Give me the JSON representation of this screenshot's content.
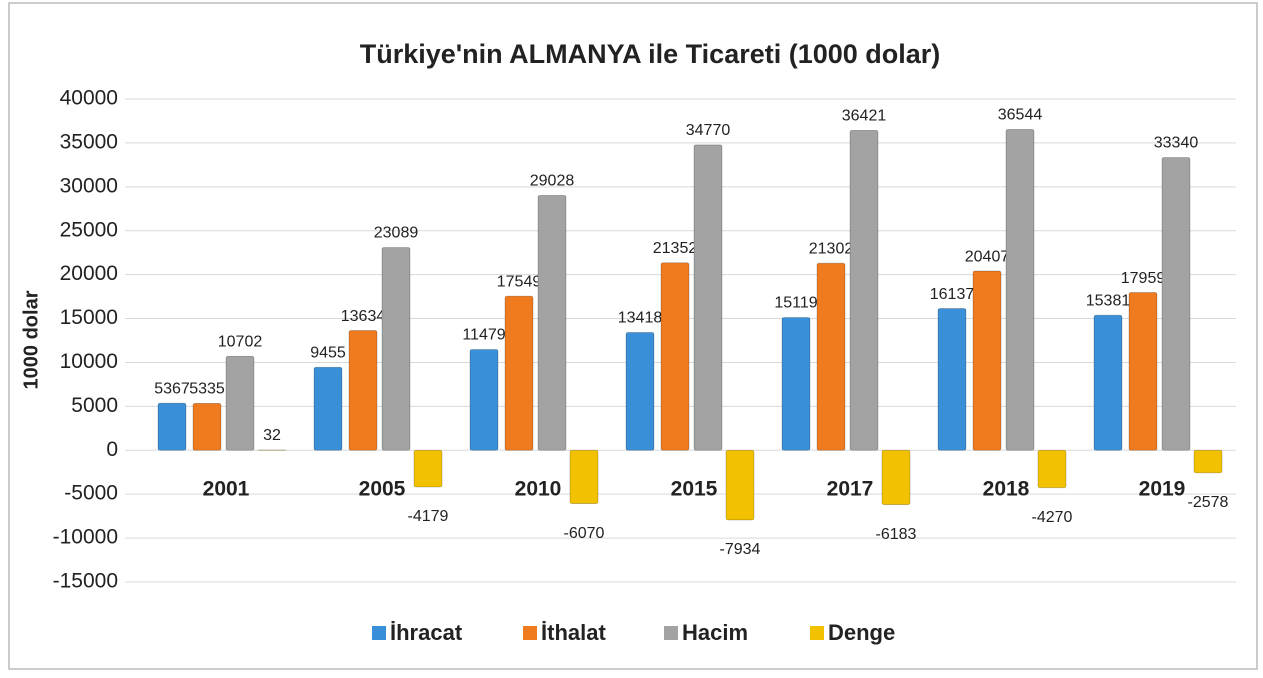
{
  "chart_data": {
    "type": "bar",
    "title": "Türkiye'nin ALMANYA ile Ticareti (1000 dolar)",
    "y_label": "1000 dolar",
    "categories": [
      "2001",
      "2005",
      "2010",
      "2015",
      "2017",
      "2018",
      "2019"
    ],
    "series": [
      {
        "name": "İhracat",
        "color": "#3a8fd9",
        "values": [
          5367,
          9455,
          11479,
          13418,
          15119,
          16137,
          15381
        ]
      },
      {
        "name": "İthalat",
        "color": "#f07a1e",
        "values": [
          5335,
          13634,
          17549,
          21352,
          21302,
          20407,
          17959
        ]
      },
      {
        "name": "Hacim",
        "color": "#a3a3a3",
        "values": [
          10702,
          23089,
          29028,
          34770,
          36421,
          36544,
          33340
        ]
      },
      {
        "name": "Denge",
        "color": "#f2c200",
        "values": [
          32,
          -4179,
          -6070,
          -7934,
          -6183,
          -4270,
          -2578
        ]
      }
    ],
    "ylim": [
      -15000,
      40000
    ],
    "yticks": [
      -15000,
      -10000,
      -5000,
      0,
      5000,
      10000,
      15000,
      20000,
      25000,
      30000,
      35000,
      40000
    ],
    "grid": true,
    "legend": "bottom"
  }
}
